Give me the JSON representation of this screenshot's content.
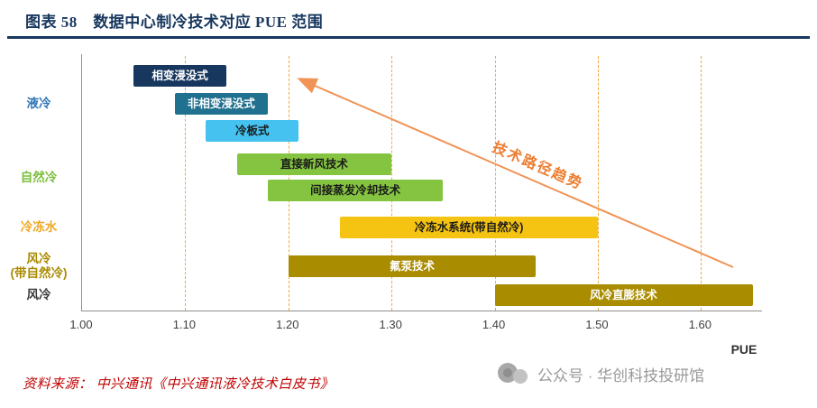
{
  "header": {
    "title": "图表 58　数据中心制冷技术对应 PUE 范围"
  },
  "chart_data": {
    "type": "bar",
    "subtype": "horizontal-range-bars",
    "title": "数据中心制冷技术对应PUE范围",
    "xlabel": "PUE",
    "xlim": [
      1.0,
      1.66
    ],
    "xticks": [
      "1.00",
      "1.10",
      "1.20",
      "1.30",
      "1.40",
      "1.50",
      "1.60"
    ],
    "grid": "vertical-dashed",
    "grid_color": "#F0A93B",
    "legend": "none",
    "groups": [
      {
        "label": "液冷",
        "color": "#2E75B6",
        "rows": [
          0,
          2
        ]
      },
      {
        "label": "自然冷",
        "color": "#7CBE3C",
        "rows": [
          3,
          4
        ]
      },
      {
        "label": "冷冻水",
        "color": "#EFA824",
        "rows": [
          5,
          5
        ]
      },
      {
        "label": "风冷\n(带自然冷)",
        "color": "#A98A00",
        "rows": [
          6,
          6
        ]
      },
      {
        "label": "风冷",
        "color": "#3A3A3A",
        "rows": [
          7,
          7
        ]
      }
    ],
    "bars": [
      {
        "label": "相变浸没式",
        "group": "液冷",
        "pue_min": 1.05,
        "pue_max": 1.14,
        "color": "#17375E",
        "text_color": "#FFFFFF"
      },
      {
        "label": "非相变浸没式",
        "group": "液冷",
        "pue_min": 1.09,
        "pue_max": 1.18,
        "color": "#20708F",
        "text_color": "#FFFFFF"
      },
      {
        "label": "冷板式",
        "group": "液冷",
        "pue_min": 1.12,
        "pue_max": 1.21,
        "color": "#45C2F0",
        "text_color": "#1A1A1A"
      },
      {
        "label": "直接新风技术",
        "group": "自然冷",
        "pue_min": 1.15,
        "pue_max": 1.3,
        "color": "#85C441",
        "text_color": "#1A1A1A"
      },
      {
        "label": "间接蒸发冷却技术",
        "group": "自然冷",
        "pue_min": 1.18,
        "pue_max": 1.35,
        "color": "#85C441",
        "text_color": "#1A1A1A"
      },
      {
        "label": "冷冻水系统(带自然冷)",
        "group": "冷冻水",
        "pue_min": 1.25,
        "pue_max": 1.5,
        "color": "#F5C311",
        "text_color": "#1A1A1A"
      },
      {
        "label": "氟泵技术",
        "group": "风冷(带自然冷)",
        "pue_min": 1.2,
        "pue_max": 1.44,
        "color": "#AA8C00",
        "text_color": "#FFFFFF"
      },
      {
        "label": "风冷直膨技术",
        "group": "风冷",
        "pue_min": 1.4,
        "pue_max": 1.65,
        "color": "#AA8C00",
        "text_color": "#FFFFFF"
      }
    ],
    "annotation": {
      "label": "技术路径趋势",
      "color": "#ED7D31",
      "arrow_color": "#F09355",
      "arrow_direction": "up-left"
    }
  },
  "footer": {
    "source": "资料来源： 中兴通讯《中兴通讯液冷技术白皮书》",
    "watermark": "公众号 · 华创科技投研馆"
  }
}
